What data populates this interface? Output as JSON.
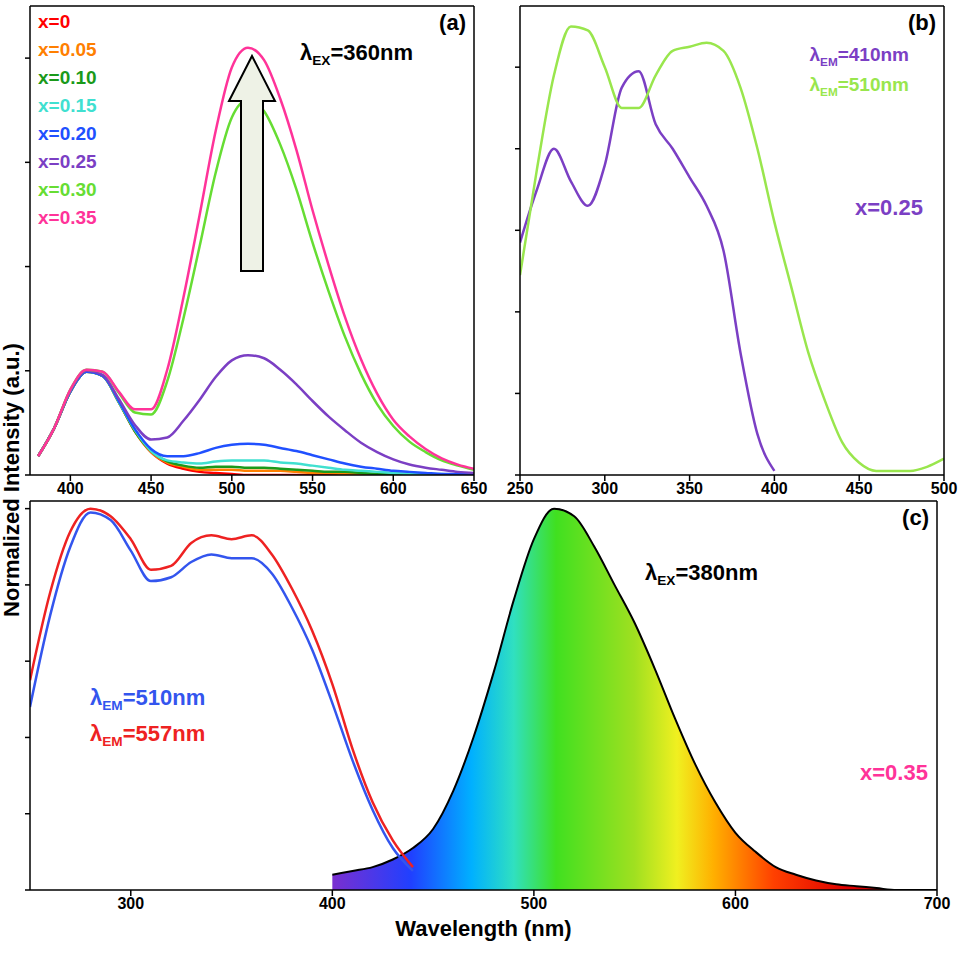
{
  "chart_data": [
    {
      "type": "line",
      "title": "(a)",
      "ylabel": "Normalized Intensity (a.u.)",
      "annotations": [
        "λEX=360nm"
      ],
      "x": [
        380,
        390,
        400,
        410,
        420,
        430,
        440,
        450,
        460,
        470,
        480,
        490,
        500,
        510,
        520,
        530,
        540,
        550,
        560,
        570,
        580,
        590,
        600,
        610,
        620,
        630,
        640,
        650
      ],
      "xlim": [
        375,
        650
      ],
      "xticks": [
        400,
        450,
        500,
        550,
        600,
        650
      ],
      "ylim": [
        0,
        4.5
      ],
      "yticks": [
        0,
        1,
        2,
        3,
        4
      ],
      "tick_labels": "x",
      "legend": "upper left",
      "series": [
        {
          "name": "x=0",
          "color": "#ff0000",
          "values": [
            0.18,
            0.45,
            0.8,
            0.99,
            0.95,
            0.7,
            0.42,
            0.22,
            0.11,
            0.06,
            0.03,
            0.02,
            0.01,
            0,
            0,
            0,
            0,
            0,
            0,
            0,
            0,
            0,
            0,
            0,
            0,
            0,
            0,
            0
          ]
        },
        {
          "name": "x=0.05",
          "color": "#ff7f00",
          "values": [
            0.18,
            0.45,
            0.8,
            0.99,
            0.95,
            0.7,
            0.42,
            0.22,
            0.12,
            0.08,
            0.05,
            0.05,
            0.05,
            0.04,
            0.04,
            0.04,
            0.03,
            0.02,
            0.02,
            0.01,
            0.01,
            0.01,
            0.01,
            0,
            0,
            0,
            0,
            0
          ]
        },
        {
          "name": "x=0.10",
          "color": "#1a9a1a",
          "values": [
            0.18,
            0.45,
            0.8,
            0.99,
            0.95,
            0.7,
            0.42,
            0.23,
            0.13,
            0.09,
            0.07,
            0.08,
            0.08,
            0.07,
            0.07,
            0.06,
            0.05,
            0.04,
            0.03,
            0.03,
            0.02,
            0.01,
            0.01,
            0.01,
            0,
            0,
            0,
            0
          ]
        },
        {
          "name": "x=0.15",
          "color": "#40e0d0",
          "values": [
            0.18,
            0.45,
            0.8,
            0.99,
            0.95,
            0.7,
            0.43,
            0.23,
            0.14,
            0.12,
            0.11,
            0.13,
            0.14,
            0.14,
            0.14,
            0.12,
            0.11,
            0.09,
            0.07,
            0.05,
            0.04,
            0.03,
            0.02,
            0.01,
            0.01,
            0.01,
            0,
            0
          ]
        },
        {
          "name": "x=0.20",
          "color": "#2050ff",
          "values": [
            0.18,
            0.45,
            0.8,
            0.99,
            0.95,
            0.71,
            0.44,
            0.25,
            0.18,
            0.18,
            0.21,
            0.26,
            0.29,
            0.3,
            0.29,
            0.26,
            0.23,
            0.19,
            0.15,
            0.11,
            0.08,
            0.06,
            0.04,
            0.03,
            0.02,
            0.01,
            0.01,
            0
          ]
        },
        {
          "name": "x=0.25",
          "color": "#7b3fc4",
          "values": [
            0.18,
            0.45,
            0.81,
            1.0,
            0.96,
            0.73,
            0.48,
            0.34,
            0.36,
            0.52,
            0.72,
            0.94,
            1.1,
            1.15,
            1.12,
            1.01,
            0.87,
            0.71,
            0.56,
            0.43,
            0.31,
            0.22,
            0.15,
            0.1,
            0.07,
            0.05,
            0.03,
            0.02
          ]
        },
        {
          "name": "x=0.30",
          "color": "#66dd33",
          "values": [
            0.18,
            0.45,
            0.82,
            1.01,
            0.99,
            0.79,
            0.6,
            0.58,
            0.9,
            1.5,
            2.19,
            2.9,
            3.43,
            3.6,
            3.49,
            3.17,
            2.74,
            2.23,
            1.76,
            1.33,
            0.97,
            0.68,
            0.47,
            0.32,
            0.22,
            0.14,
            0.09,
            0.05
          ]
        },
        {
          "name": "x=0.35",
          "color": "#ff3399",
          "values": [
            0.18,
            0.45,
            0.82,
            1.01,
            0.99,
            0.8,
            0.63,
            0.63,
            1.01,
            1.7,
            2.49,
            3.3,
            3.91,
            4.1,
            3.98,
            3.61,
            3.12,
            2.54,
            2.01,
            1.52,
            1.11,
            0.78,
            0.53,
            0.37,
            0.25,
            0.16,
            0.1,
            0.06
          ]
        }
      ]
    },
    {
      "type": "line",
      "title": "(b)",
      "annotations": [
        "x=0.25"
      ],
      "xlim": [
        250,
        500
      ],
      "xticks": [
        250,
        300,
        350,
        400,
        450,
        500
      ],
      "ylim": [
        0,
        1.15
      ],
      "yticks": [
        0,
        0.2,
        0.4,
        0.6,
        0.8,
        1
      ],
      "tick_labels": "x",
      "legend": "upper right",
      "series": [
        {
          "name": "λEM=410nm",
          "color": "#7b3fc4",
          "x": [
            250,
            260,
            270,
            280,
            290,
            300,
            310,
            320,
            330,
            340,
            350,
            360,
            370,
            380,
            390,
            400
          ],
          "values": [
            0.57,
            0.7,
            0.8,
            0.72,
            0.66,
            0.76,
            0.95,
            0.99,
            0.86,
            0.8,
            0.73,
            0.66,
            0.55,
            0.3,
            0.1,
            0.01
          ]
        },
        {
          "name": "λEM=510nm",
          "color": "#99e64d",
          "x": [
            250,
            260,
            270,
            280,
            290,
            300,
            310,
            320,
            330,
            340,
            350,
            360,
            370,
            380,
            390,
            400,
            410,
            420,
            430,
            440,
            450,
            460,
            470,
            480,
            490,
            500
          ],
          "values": [
            0.49,
            0.75,
            0.98,
            1.1,
            1.09,
            1.0,
            0.9,
            0.9,
            0.98,
            1.04,
            1.05,
            1.06,
            1.04,
            0.95,
            0.8,
            0.62,
            0.46,
            0.3,
            0.18,
            0.08,
            0.03,
            0.01,
            0.01,
            0.01,
            0.02,
            0.04
          ]
        }
      ]
    },
    {
      "type": "line",
      "title": "(c)",
      "xlabel": "Wavelength (nm)",
      "annotations": [
        "x=0.35"
      ],
      "xlim": [
        250,
        700
      ],
      "xticks": [
        300,
        400,
        500,
        600,
        700
      ],
      "ylim": [
        0,
        1.02
      ],
      "yticks": [
        0,
        0.2,
        0.4,
        0.6,
        0.8,
        1
      ],
      "tick_labels": "x",
      "legend": "center left",
      "series": [
        {
          "name": "λEM=510nm",
          "color": "#3355ee",
          "x": [
            250,
            260,
            270,
            280,
            290,
            300,
            310,
            320,
            330,
            340,
            350,
            360,
            370,
            380,
            390,
            400,
            410,
            420,
            430,
            440
          ],
          "values": [
            0.48,
            0.72,
            0.9,
            0.99,
            0.97,
            0.89,
            0.81,
            0.82,
            0.86,
            0.88,
            0.87,
            0.87,
            0.83,
            0.74,
            0.63,
            0.49,
            0.34,
            0.21,
            0.11,
            0.05
          ]
        },
        {
          "name": "λEM=557nm",
          "color": "#ee2222",
          "x": [
            250,
            260,
            270,
            280,
            290,
            300,
            310,
            320,
            330,
            340,
            350,
            360,
            370,
            380,
            390,
            400,
            410,
            420,
            430,
            440
          ],
          "values": [
            0.55,
            0.78,
            0.94,
            1.0,
            0.98,
            0.92,
            0.84,
            0.85,
            0.91,
            0.93,
            0.92,
            0.93,
            0.88,
            0.79,
            0.68,
            0.54,
            0.37,
            0.23,
            0.13,
            0.06
          ]
        },
        {
          "name": "λEX=380nm",
          "type": "area",
          "color": "#000000",
          "x": [
            400,
            410,
            420,
            430,
            440,
            450,
            460,
            470,
            480,
            490,
            500,
            510,
            520,
            530,
            540,
            550,
            560,
            570,
            580,
            590,
            600,
            610,
            620,
            630,
            640,
            650,
            660,
            670,
            680,
            690,
            700
          ],
          "values": [
            0.04,
            0.05,
            0.06,
            0.08,
            0.11,
            0.16,
            0.26,
            0.4,
            0.57,
            0.76,
            0.92,
            1.0,
            0.98,
            0.9,
            0.8,
            0.7,
            0.58,
            0.45,
            0.33,
            0.23,
            0.15,
            0.1,
            0.06,
            0.04,
            0.025,
            0.015,
            0.01,
            0.005,
            0,
            0,
            0
          ]
        }
      ]
    }
  ]
}
